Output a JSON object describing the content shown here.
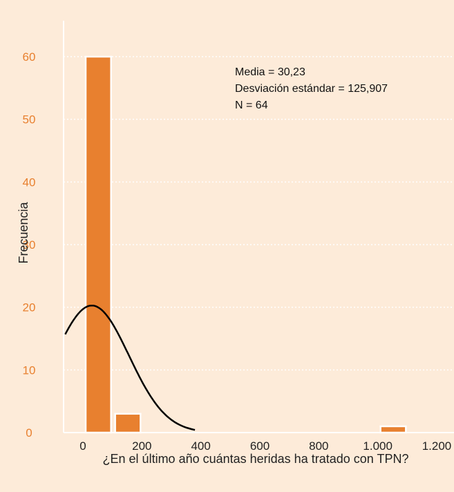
{
  "chart_data": {
    "type": "bar",
    "subtype": "histogram",
    "xlabel": "¿En el último año cuántas heridas ha tratado con TPN?",
    "ylabel": "Frecuencia",
    "xlim": [
      -50,
      1250
    ],
    "ylim": [
      0,
      66
    ],
    "x_ticks": [
      0,
      200,
      400,
      600,
      800,
      1000,
      1200
    ],
    "x_tick_labels": [
      "0",
      "200",
      "400",
      "600",
      "800",
      "1.000",
      "1.200"
    ],
    "y_ticks": [
      0,
      10,
      20,
      30,
      40,
      50,
      60
    ],
    "y_tick_labels": [
      "0",
      "10",
      "20",
      "30",
      "40",
      "50",
      "60"
    ],
    "grid": "horizontal dotted white",
    "bins": [
      {
        "x0": 0,
        "x1": 100,
        "count": 60
      },
      {
        "x0": 100,
        "x1": 200,
        "count": 3
      },
      {
        "x0": 1000,
        "x1": 1100,
        "count": 1
      }
    ],
    "normal_curve": {
      "mean": 30.23,
      "sd": 125.907,
      "n": 64,
      "bin_width": 100
    },
    "annotations": [
      "Media = 30,23",
      "Desviación estándar = 125,907",
      "N = 64"
    ],
    "colors": {
      "bar": "#e8802f",
      "bar_stroke": "#ffffff",
      "background": "#fdebd9",
      "grid": "#ffffff",
      "curve": "#000000",
      "tick_text": "#e8802f"
    }
  }
}
